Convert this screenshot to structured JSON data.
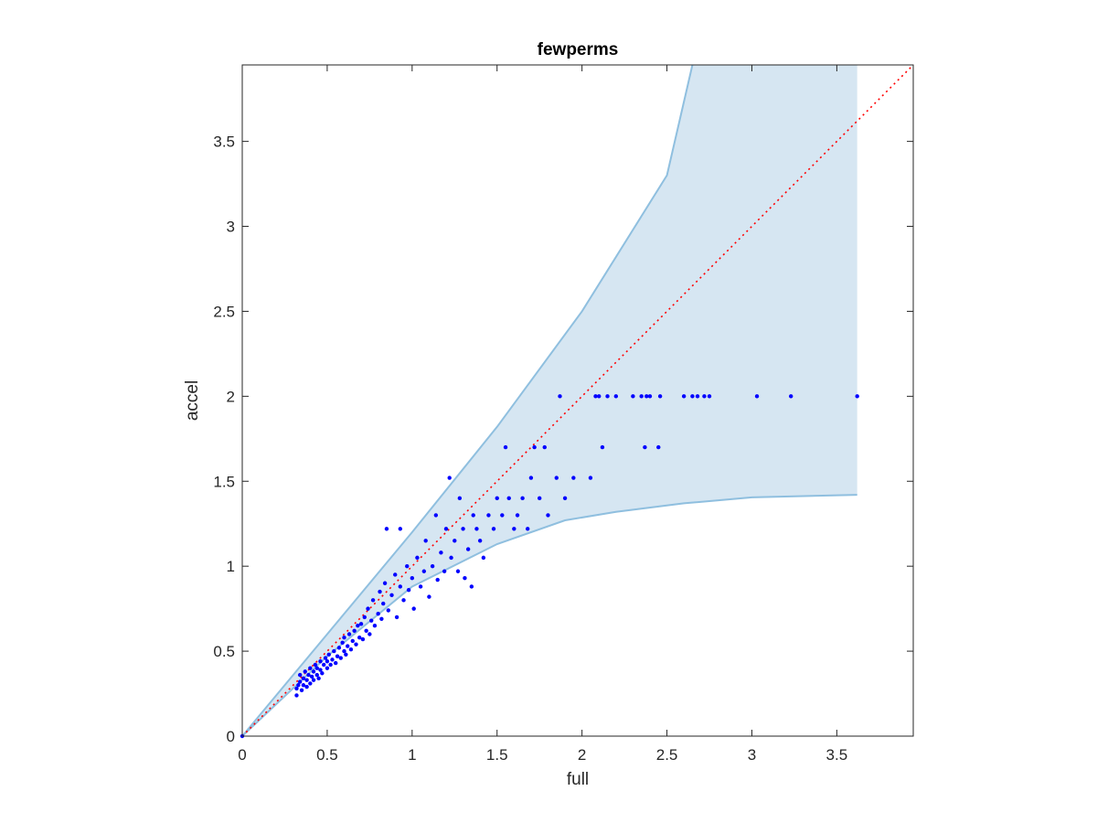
{
  "chart_data": {
    "type": "scatter",
    "title": "fewperms",
    "xlabel": "full",
    "ylabel": "accel",
    "xlim": [
      0,
      3.95
    ],
    "ylim": [
      0,
      3.95
    ],
    "xticks": [
      "0",
      "0.5",
      "1",
      "1.5",
      "2",
      "2.5",
      "3",
      "3.5"
    ],
    "yticks": [
      "0",
      "0.5",
      "1",
      "1.5",
      "2",
      "2.5",
      "3",
      "3.5"
    ],
    "grid": false,
    "legend": "none",
    "colors": {
      "points": "#0000ff",
      "band_fill": "#d6e6f2",
      "band_edge": "#8fbfdf",
      "reference_line": "#ff0000"
    },
    "reference_line": {
      "style": "dotted",
      "from": [
        0,
        0
      ],
      "to": [
        3.95,
        3.95
      ]
    },
    "band": {
      "upper": [
        [
          0,
          0
        ],
        [
          0.5,
          0.6
        ],
        [
          1,
          1.2
        ],
        [
          1.5,
          1.82
        ],
        [
          2,
          2.5
        ],
        [
          2.5,
          3.3
        ],
        [
          2.65,
          3.95
        ]
      ],
      "lower": [
        [
          0,
          0
        ],
        [
          0.5,
          0.47
        ],
        [
          1,
          0.88
        ],
        [
          1.5,
          1.13
        ],
        [
          1.9,
          1.27
        ],
        [
          2.2,
          1.32
        ],
        [
          2.6,
          1.37
        ],
        [
          3,
          1.405
        ],
        [
          3.62,
          1.42
        ]
      ],
      "right_edge_x": 3.62
    },
    "series": [
      {
        "points": [
          [
            0,
            0
          ],
          [
            0.32,
            0.24
          ],
          [
            0.32,
            0.28
          ],
          [
            0.33,
            0.3
          ],
          [
            0.34,
            0.32
          ],
          [
            0.34,
            0.36
          ],
          [
            0.35,
            0.27
          ],
          [
            0.36,
            0.3
          ],
          [
            0.36,
            0.34
          ],
          [
            0.37,
            0.38
          ],
          [
            0.38,
            0.29
          ],
          [
            0.38,
            0.33
          ],
          [
            0.39,
            0.36
          ],
          [
            0.4,
            0.31
          ],
          [
            0.4,
            0.4
          ],
          [
            0.41,
            0.35
          ],
          [
            0.42,
            0.38
          ],
          [
            0.42,
            0.33
          ],
          [
            0.43,
            0.42
          ],
          [
            0.44,
            0.36
          ],
          [
            0.44,
            0.4
          ],
          [
            0.45,
            0.34
          ],
          [
            0.46,
            0.44
          ],
          [
            0.46,
            0.39
          ],
          [
            0.47,
            0.37
          ],
          [
            0.48,
            0.42
          ],
          [
            0.49,
            0.46
          ],
          [
            0.5,
            0.4
          ],
          [
            0.5,
            0.44
          ],
          [
            0.51,
            0.48
          ],
          [
            0.52,
            0.42
          ],
          [
            0.53,
            0.45
          ],
          [
            0.54,
            0.5
          ],
          [
            0.55,
            0.43
          ],
          [
            0.56,
            0.47
          ],
          [
            0.57,
            0.52
          ],
          [
            0.58,
            0.46
          ],
          [
            0.59,
            0.55
          ],
          [
            0.6,
            0.5
          ],
          [
            0.6,
            0.58
          ],
          [
            0.61,
            0.48
          ],
          [
            0.62,
            0.53
          ],
          [
            0.63,
            0.6
          ],
          [
            0.64,
            0.51
          ],
          [
            0.65,
            0.56
          ],
          [
            0.66,
            0.62
          ],
          [
            0.67,
            0.54
          ],
          [
            0.68,
            0.65
          ],
          [
            0.69,
            0.58
          ],
          [
            0.7,
            0.66
          ],
          [
            0.71,
            0.57
          ],
          [
            0.72,
            0.7
          ],
          [
            0.73,
            0.62
          ],
          [
            0.74,
            0.75
          ],
          [
            0.75,
            0.6
          ],
          [
            0.76,
            0.68
          ],
          [
            0.77,
            0.8
          ],
          [
            0.78,
            0.65
          ],
          [
            0.8,
            0.72
          ],
          [
            0.81,
            0.85
          ],
          [
            0.82,
            0.69
          ],
          [
            0.83,
            0.78
          ],
          [
            0.84,
            0.9
          ],
          [
            0.85,
            1.22
          ],
          [
            0.86,
            0.74
          ],
          [
            0.88,
            0.83
          ],
          [
            0.9,
            0.95
          ],
          [
            0.91,
            0.7
          ],
          [
            0.93,
            0.88
          ],
          [
            0.93,
            1.22
          ],
          [
            0.95,
            0.8
          ],
          [
            0.97,
            1.0
          ],
          [
            0.98,
            0.86
          ],
          [
            1.0,
            0.93
          ],
          [
            1.01,
            0.75
          ],
          [
            1.03,
            1.05
          ],
          [
            1.05,
            0.88
          ],
          [
            1.07,
            0.97
          ],
          [
            1.08,
            1.15
          ],
          [
            1.1,
            0.82
          ],
          [
            1.12,
            1.0
          ],
          [
            1.14,
            1.3
          ],
          [
            1.15,
            0.92
          ],
          [
            1.17,
            1.08
          ],
          [
            1.19,
            0.97
          ],
          [
            1.2,
            1.22
          ],
          [
            1.22,
            1.52
          ],
          [
            1.23,
            1.05
          ],
          [
            1.25,
            1.15
          ],
          [
            1.27,
            0.97
          ],
          [
            1.28,
            1.4
          ],
          [
            1.3,
            1.22
          ],
          [
            1.31,
            0.93
          ],
          [
            1.33,
            1.1
          ],
          [
            1.35,
            0.88
          ],
          [
            1.36,
            1.3
          ],
          [
            1.38,
            1.22
          ],
          [
            1.4,
            1.15
          ],
          [
            1.42,
            1.05
          ],
          [
            1.45,
            1.3
          ],
          [
            1.48,
            1.22
          ],
          [
            1.5,
            1.4
          ],
          [
            1.53,
            1.3
          ],
          [
            1.55,
            1.7
          ],
          [
            1.57,
            1.4
          ],
          [
            1.6,
            1.22
          ],
          [
            1.62,
            1.3
          ],
          [
            1.65,
            1.4
          ],
          [
            1.68,
            1.22
          ],
          [
            1.7,
            1.52
          ],
          [
            1.72,
            1.7
          ],
          [
            1.75,
            1.4
          ],
          [
            1.78,
            1.7
          ],
          [
            1.8,
            1.3
          ],
          [
            1.85,
            1.52
          ],
          [
            1.87,
            2.0
          ],
          [
            1.9,
            1.4
          ],
          [
            1.95,
            1.52
          ],
          [
            2.05,
            1.52
          ],
          [
            2.08,
            2.0
          ],
          [
            2.1,
            2.0
          ],
          [
            2.12,
            1.7
          ],
          [
            2.15,
            2.0
          ],
          [
            2.2,
            2.0
          ],
          [
            2.3,
            2.0
          ],
          [
            2.35,
            2.0
          ],
          [
            2.37,
            1.7
          ],
          [
            2.38,
            2.0
          ],
          [
            2.4,
            2.0
          ],
          [
            2.45,
            1.7
          ],
          [
            2.46,
            2.0
          ],
          [
            2.6,
            2.0
          ],
          [
            2.65,
            2.0
          ],
          [
            2.68,
            2.0
          ],
          [
            2.72,
            2.0
          ],
          [
            2.75,
            2.0
          ],
          [
            3.03,
            2.0
          ],
          [
            3.23,
            2.0
          ],
          [
            3.62,
            2.0
          ]
        ]
      }
    ]
  }
}
